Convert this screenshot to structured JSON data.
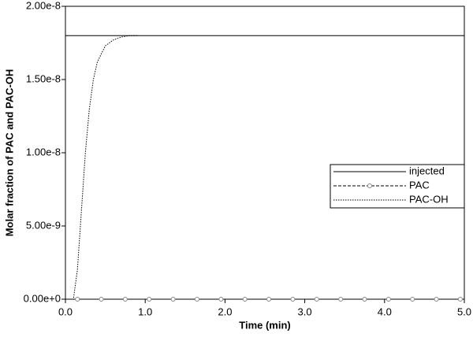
{
  "chart_data": {
    "type": "line",
    "xlabel": "Time (min)",
    "ylabel": "Molar fraction of PAC and PAC-OH",
    "xlim": [
      0,
      5
    ],
    "ylim": [
      0,
      2e-08
    ],
    "xticks": [
      {
        "value": 0,
        "label": "0.0"
      },
      {
        "value": 1,
        "label": "1.0"
      },
      {
        "value": 2,
        "label": "2.0"
      },
      {
        "value": 3,
        "label": "3.0"
      },
      {
        "value": 4,
        "label": "4.0"
      },
      {
        "value": 5,
        "label": "5.0"
      }
    ],
    "yticks": [
      {
        "value": 0,
        "label": "0.00e+0"
      },
      {
        "value": 5e-09,
        "label": "5.00e-9"
      },
      {
        "value": 1e-08,
        "label": "1.00e-8"
      },
      {
        "value": 1.5e-08,
        "label": "1.50e-8"
      },
      {
        "value": 2e-08,
        "label": "2.00e-8"
      }
    ],
    "legend": "right",
    "series": [
      {
        "name": "injected",
        "color": "#000000",
        "dash": "solid",
        "marker": false,
        "x": [
          0,
          5
        ],
        "values": [
          1.8e-08,
          1.8e-08
        ]
      },
      {
        "name": "PAC",
        "color": "#000000",
        "dash": "dashed",
        "marker": true,
        "x": [
          0.15,
          0.45,
          0.75,
          1.05,
          1.35,
          1.65,
          1.95,
          2.25,
          2.55,
          2.85,
          3.15,
          3.45,
          3.75,
          4.05,
          4.35,
          4.65,
          4.95
        ],
        "values": [
          0,
          0,
          0,
          0,
          0,
          0,
          0,
          0,
          0,
          0,
          0,
          0,
          0,
          0,
          0,
          0,
          0
        ]
      },
      {
        "name": "PAC-OH",
        "color": "#000000",
        "dash": "dotted",
        "marker": false,
        "x": [
          0,
          0.1,
          0.15,
          0.2,
          0.25,
          0.3,
          0.35,
          0.4,
          0.5,
          0.6,
          0.7,
          0.8,
          0.9
        ],
        "values": [
          0,
          0,
          2e-09,
          6e-09,
          1e-08,
          1.3e-08,
          1.5e-08,
          1.62e-08,
          1.73e-08,
          1.77e-08,
          1.79e-08,
          1.8e-08,
          1.8e-08
        ]
      }
    ]
  }
}
